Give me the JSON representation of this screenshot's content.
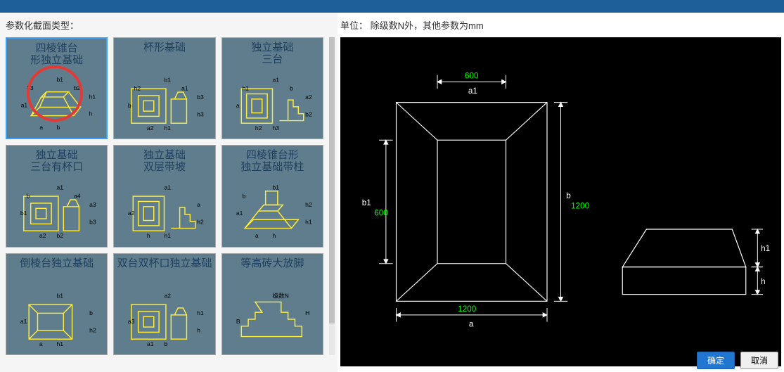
{
  "topBar": {
    "close": ""
  },
  "leftLabel": "参数化截面类型：",
  "rightLabel": "单位： 除级数N外，其他参数为mm",
  "tiles": [
    {
      "title": "四棱锥台\n形独立基础",
      "selected": true,
      "hasCircle": true,
      "labels": [
        "a1",
        "b1",
        "h1",
        "h",
        "b",
        "a",
        "b3",
        "b2"
      ]
    },
    {
      "title": "杯形基础",
      "labels": [
        "b",
        "b1",
        "b3",
        "h3",
        "h1",
        "a2",
        "h2",
        "a1",
        "h",
        "a3",
        "a"
      ]
    },
    {
      "title": "独立基础\n三台",
      "labels": [
        "a",
        "a1",
        "a2",
        "b2",
        "h3",
        "h2",
        "h1",
        "b"
      ]
    },
    {
      "title": "独立基础\n三台有杯口",
      "labels": [
        "b1",
        "a1",
        "a3",
        "b3",
        "b2",
        "a2",
        "b",
        "a4",
        "h3",
        "h2",
        "h1"
      ]
    },
    {
      "title": "独立基础\n双层带坡",
      "labels": [
        "a2",
        "a1",
        "a",
        "h2",
        "h1",
        "h"
      ]
    },
    {
      "title": "四棱锥台形\n独立基础带柱",
      "labels": [
        "a1",
        "b1",
        "h2",
        "h1",
        "h",
        "a",
        "b"
      ]
    },
    {
      "title": "倒棱台独立基础",
      "labels": [
        "a1",
        "b1",
        "b",
        "h2",
        "h1",
        "a"
      ]
    },
    {
      "title": "双台双杯口独立基础",
      "labels": [
        "a3",
        "a2",
        "h1",
        "h",
        "b",
        "a1"
      ]
    },
    {
      "title": "等高砖大放脚",
      "labels": [
        "B",
        "级数N",
        "H"
      ]
    }
  ],
  "preview": {
    "a1": "600",
    "a1_label": "a1",
    "b1": "600",
    "b1_label": "b1",
    "a_val": "1200",
    "a_label": "a",
    "b_val": "1200",
    "b_label": "b",
    "h_label": "h",
    "h1_label": "h1",
    "colors": {
      "bg": "#000000",
      "line": "#ffffff",
      "dim_value": "#00ff00",
      "dim_label": "#ffffff"
    }
  },
  "buttons": {
    "ok": "确定",
    "cancel": "取消"
  }
}
